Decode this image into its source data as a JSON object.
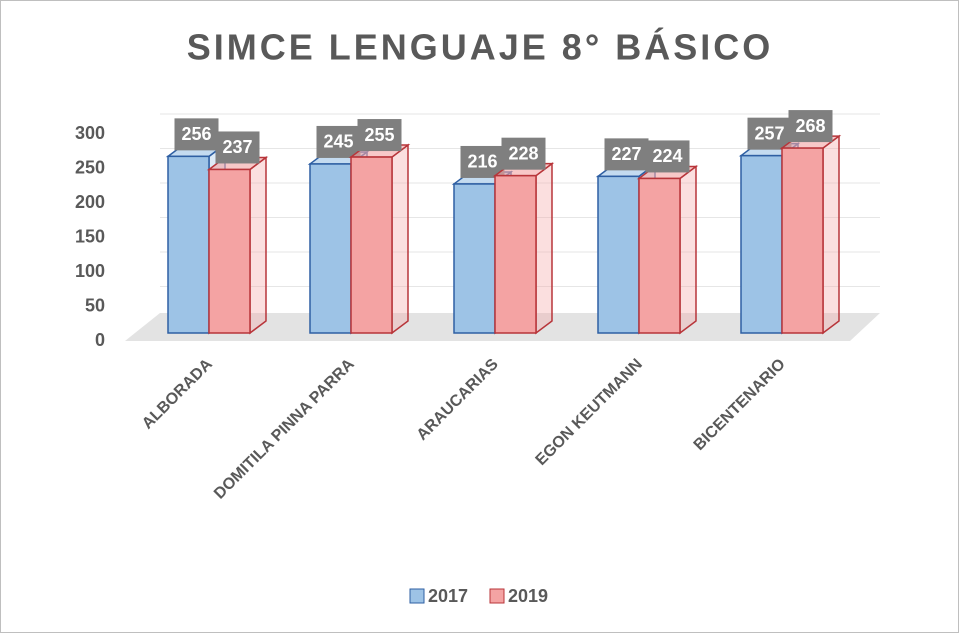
{
  "chart_data": {
    "type": "bar3d",
    "title": "SIMCE LENGUAJE 8° BÁSICO",
    "categories": [
      "ALBORADA",
      "DOMITILA PINNA PARRA",
      "ARAUCARIAS",
      "EGON KEUTMANN",
      "BICENTENARIO"
    ],
    "series": [
      {
        "name": "2017",
        "color": "#9dc3e6",
        "values": [
          256,
          245,
          216,
          227,
          257
        ]
      },
      {
        "name": "2019",
        "color": "#f4a3a3",
        "values": [
          237,
          255,
          228,
          224,
          268
        ]
      }
    ],
    "ylim": [
      0,
      350
    ],
    "yticks": [
      0,
      50,
      100,
      150,
      200,
      250,
      300
    ],
    "grid": true,
    "legend": "bottom"
  }
}
